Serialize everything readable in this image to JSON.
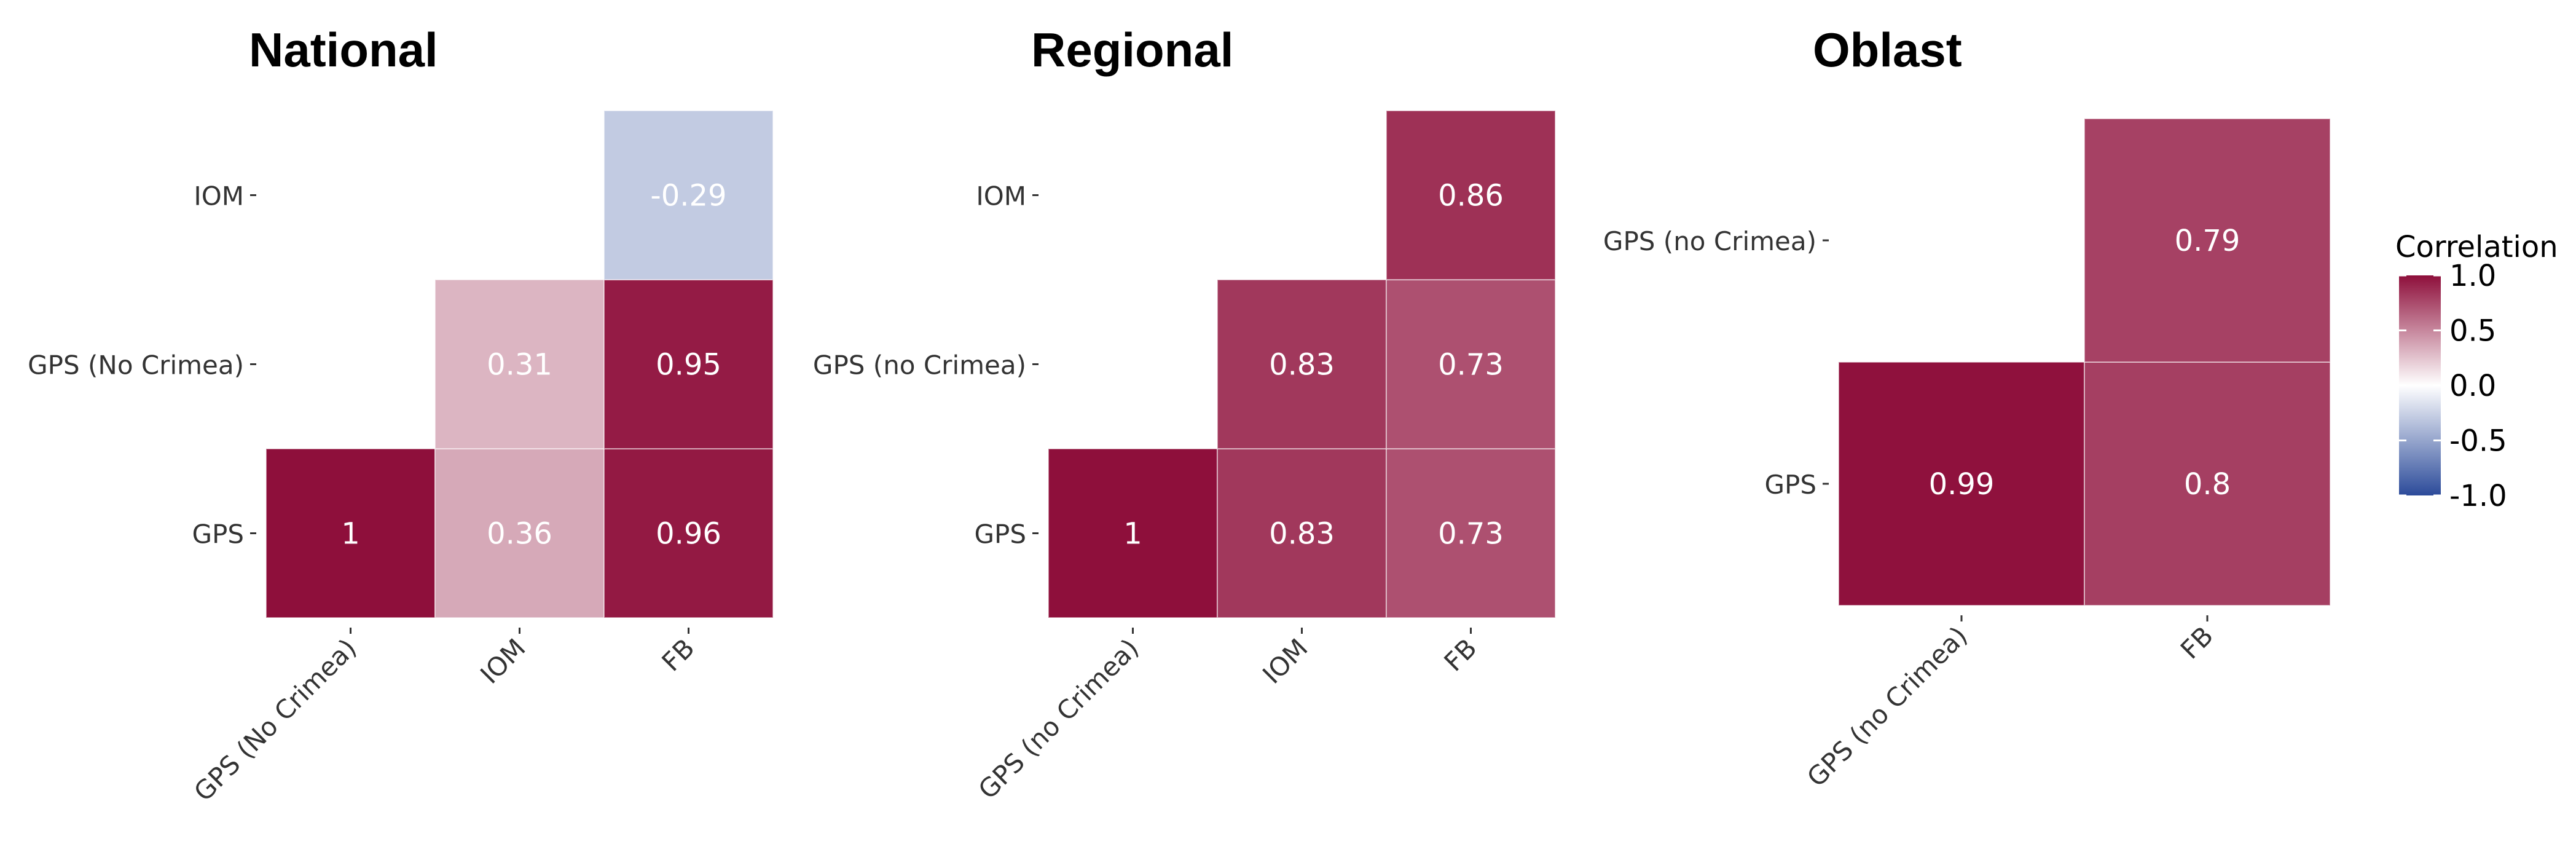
{
  "chart_data": [
    {
      "type": "heatmap",
      "title": "National",
      "x_categories": [
        "GPS (No  Crimea)",
        "IOM",
        "FB"
      ],
      "y_categories": [
        "GPS",
        "GPS (No  Crimea)",
        "IOM"
      ],
      "cells": [
        {
          "x": "GPS (No  Crimea)",
          "y": "GPS",
          "value": 1,
          "label": "1"
        },
        {
          "x": "IOM",
          "y": "GPS",
          "value": 0.36,
          "label": "0.36"
        },
        {
          "x": "FB",
          "y": "GPS",
          "value": 0.96,
          "label": "0.96"
        },
        {
          "x": "IOM",
          "y": "GPS (No  Crimea)",
          "value": 0.31,
          "label": "0.31"
        },
        {
          "x": "FB",
          "y": "GPS (No  Crimea)",
          "value": 0.95,
          "label": "0.95"
        },
        {
          "x": "FB",
          "y": "IOM",
          "value": -0.29,
          "label": "-0.29"
        }
      ]
    },
    {
      "type": "heatmap",
      "title": "Regional",
      "x_categories": [
        "GPS (no Crimea)",
        "IOM",
        "FB"
      ],
      "y_categories": [
        "GPS",
        "GPS (no Crimea)",
        "IOM"
      ],
      "cells": [
        {
          "x": "GPS (no Crimea)",
          "y": "GPS",
          "value": 1,
          "label": "1"
        },
        {
          "x": "IOM",
          "y": "GPS",
          "value": 0.83,
          "label": "0.83"
        },
        {
          "x": "FB",
          "y": "GPS",
          "value": 0.73,
          "label": "0.73"
        },
        {
          "x": "IOM",
          "y": "GPS (no Crimea)",
          "value": 0.83,
          "label": "0.83"
        },
        {
          "x": "FB",
          "y": "GPS (no Crimea)",
          "value": 0.73,
          "label": "0.73"
        },
        {
          "x": "FB",
          "y": "IOM",
          "value": 0.86,
          "label": "0.86"
        }
      ]
    },
    {
      "type": "heatmap",
      "title": "Oblast",
      "x_categories": [
        "GPS (no Crimea)",
        "FB"
      ],
      "y_categories": [
        "GPS",
        "GPS (no Crimea)"
      ],
      "cells": [
        {
          "x": "GPS (no Crimea)",
          "y": "GPS",
          "value": 0.99,
          "label": "0.99"
        },
        {
          "x": "FB",
          "y": "GPS",
          "value": 0.8,
          "label": "0.8"
        },
        {
          "x": "FB",
          "y": "GPS (no Crimea)",
          "value": 0.79,
          "label": "0.79"
        }
      ]
    }
  ],
  "legend": {
    "title": "Correlation",
    "placement": "right",
    "range": [
      -1.0,
      1.0
    ],
    "ticks": [
      "1.0",
      "0.5",
      "0.0",
      "-0.5",
      "-1.0"
    ],
    "tick_values": [
      1.0,
      0.5,
      0.0,
      -0.5,
      -1.0
    ],
    "colors": {
      "low": "#2c4b9a",
      "mid": "#ffffff",
      "high": "#8e0f3b"
    }
  }
}
